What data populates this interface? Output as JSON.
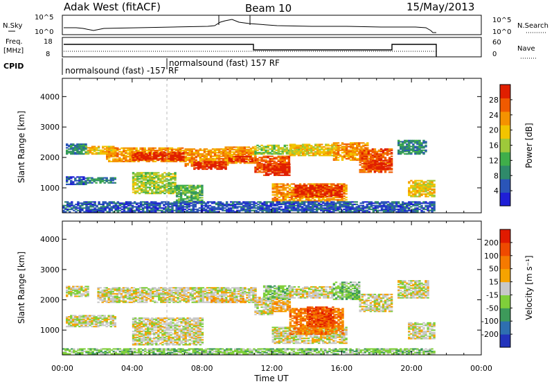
{
  "header": {
    "station": "Adak West (fitACF)",
    "beam": "Beam 10",
    "date": "15/May/2013"
  },
  "summary": {
    "nsky_label": "N.Sky",
    "nsky_ticks": [
      "10^5",
      "10^0"
    ],
    "nsearch_label": "N.Search",
    "nsearch_ticks": [
      "10^5",
      "10^0"
    ],
    "freq_label_line1": "Freq.",
    "freq_label_line2": "[MHz]",
    "freq_ticks": [
      "18",
      "8"
    ],
    "nave_label": "Nave",
    "nave_ticks": [
      "60",
      "0"
    ],
    "cpid_label": "CPID",
    "cpid_segments": [
      {
        "name": "normalsound (fast) -157 RF",
        "start_h": 0.0,
        "end_h": 6.0
      },
      {
        "name": "normalsound (fast) 157 RF",
        "start_h": 6.0,
        "end_h": 21.5
      }
    ]
  },
  "chart_data": [
    {
      "type": "heatmap",
      "panel": "power",
      "xlabel": "",
      "ylabel": "Slant Range [km]",
      "xlim": [
        0,
        24
      ],
      "ylim": [
        180,
        4600
      ],
      "yticks": [
        "1000",
        "2000",
        "3000",
        "4000"
      ],
      "colorbar": {
        "label": "Power [dB]",
        "ticks": [
          "4",
          "8",
          "12",
          "16",
          "20",
          "24",
          "28"
        ],
        "colors": [
          "#1f1fd6",
          "#2a55b8",
          "#2f8a6a",
          "#3fae4a",
          "#9ec93a",
          "#f2c400",
          "#f59200",
          "#f05a00",
          "#e01f00"
        ]
      },
      "bands": [
        {
          "t0": 0.2,
          "t1": 1.3,
          "r0": 2100,
          "r1": 2450,
          "level": 2
        },
        {
          "t0": 0.2,
          "t1": 1.4,
          "r0": 1100,
          "r1": 1350,
          "level": 1
        },
        {
          "t0": 1.4,
          "t1": 3.0,
          "r0": 1150,
          "r1": 1350,
          "level": 2
        },
        {
          "t0": 1.3,
          "t1": 3.0,
          "r0": 2100,
          "r1": 2350,
          "level": 5
        },
        {
          "t0": 2.5,
          "t1": 7.0,
          "r0": 1850,
          "r1": 2300,
          "level": 6
        },
        {
          "t0": 4.0,
          "t1": 7.0,
          "r0": 1900,
          "r1": 2150,
          "level": 8
        },
        {
          "t0": 7.0,
          "t1": 9.5,
          "r0": 1700,
          "r1": 2300,
          "level": 6
        },
        {
          "t0": 7.5,
          "t1": 9.3,
          "r0": 1600,
          "r1": 1850,
          "level": 8
        },
        {
          "t0": 9.3,
          "t1": 11.0,
          "r0": 1800,
          "r1": 2350,
          "level": 6
        },
        {
          "t0": 9.5,
          "t1": 10.9,
          "r0": 1850,
          "r1": 2050,
          "level": 8
        },
        {
          "t0": 4.0,
          "t1": 6.5,
          "r0": 800,
          "r1": 1500,
          "level": 4
        },
        {
          "t0": 6.5,
          "t1": 8.0,
          "r0": 500,
          "r1": 1100,
          "level": 3
        },
        {
          "t0": 11.0,
          "t1": 13.0,
          "r0": 1500,
          "r1": 2050,
          "level": 7
        },
        {
          "t0": 11.5,
          "t1": 13.0,
          "r0": 1400,
          "r1": 1800,
          "level": 8
        },
        {
          "t0": 11.0,
          "t1": 14.0,
          "r0": 2100,
          "r1": 2400,
          "level": 4
        },
        {
          "t0": 13.0,
          "t1": 15.8,
          "r0": 2050,
          "r1": 2450,
          "level": 5
        },
        {
          "t0": 12.0,
          "t1": 16.2,
          "r0": 550,
          "r1": 1150,
          "level": 6
        },
        {
          "t0": 13.3,
          "t1": 16.0,
          "r0": 700,
          "r1": 1100,
          "level": 8
        },
        {
          "t0": 15.5,
          "t1": 17.5,
          "r0": 1900,
          "r1": 2500,
          "level": 6
        },
        {
          "t0": 17.0,
          "t1": 18.9,
          "r0": 1500,
          "r1": 2300,
          "level": 7
        },
        {
          "t0": 17.5,
          "t1": 18.8,
          "r0": 1600,
          "r1": 1900,
          "level": 8
        },
        {
          "t0": 19.2,
          "t1": 20.8,
          "r0": 2100,
          "r1": 2550,
          "level": 2
        },
        {
          "t0": 19.8,
          "t1": 21.3,
          "r0": 700,
          "r1": 1250,
          "level": 5
        },
        {
          "t0": 0.0,
          "t1": 21.3,
          "r0": 200,
          "r1": 550,
          "level": 1
        }
      ]
    },
    {
      "type": "heatmap",
      "panel": "velocity",
      "xlabel": "Time UT",
      "ylabel": "Slant Range [km]",
      "xlim": [
        0,
        24
      ],
      "ylim": [
        180,
        4600
      ],
      "xticks": [
        "00:00",
        "04:00",
        "08:00",
        "12:00",
        "16:00",
        "20:00",
        "00:00"
      ],
      "yticks": [
        "1000",
        "2000",
        "3000",
        "4000"
      ],
      "colorbar": {
        "label": "Velocity [m s⁻¹]",
        "ticks": [
          "200",
          "100",
          "50",
          "15",
          "-15",
          "-50",
          "-100",
          "-200"
        ],
        "colors": [
          "#2233bb",
          "#2e6fb0",
          "#3d9a5a",
          "#7fcf3a",
          "#c8c8c8",
          "#f6a300",
          "#f57a00",
          "#ef4a00",
          "#e01a00"
        ]
      },
      "bands": [
        {
          "t0": 0.2,
          "t1": 1.5,
          "r0": 2100,
          "r1": 2450,
          "level": 4
        },
        {
          "t0": 2.0,
          "t1": 11.0,
          "r0": 1900,
          "r1": 2400,
          "level": 4
        },
        {
          "t0": 0.2,
          "t1": 3.0,
          "r0": 1100,
          "r1": 1500,
          "level": 4
        },
        {
          "t0": 4.0,
          "t1": 8.0,
          "r0": 500,
          "r1": 1400,
          "level": 4
        },
        {
          "t0": 8.5,
          "t1": 10.5,
          "r0": 1900,
          "r1": 2050,
          "level": 5
        },
        {
          "t0": 11.0,
          "t1": 12.0,
          "r0": 1500,
          "r1": 2100,
          "level": 4
        },
        {
          "t0": 12.0,
          "t1": 13.0,
          "r0": 1600,
          "r1": 2200,
          "level": 5
        },
        {
          "t0": 11.5,
          "t1": 13.0,
          "r0": 2000,
          "r1": 2450,
          "level": 3
        },
        {
          "t0": 13.0,
          "t1": 15.5,
          "r0": 2050,
          "r1": 2450,
          "level": 4
        },
        {
          "t0": 12.0,
          "t1": 16.2,
          "r0": 550,
          "r1": 1100,
          "level": 4
        },
        {
          "t0": 13.0,
          "t1": 16.0,
          "r0": 850,
          "r1": 1700,
          "level": 6
        },
        {
          "t0": 14.0,
          "t1": 15.5,
          "r0": 1100,
          "r1": 1750,
          "level": 7
        },
        {
          "t0": 15.5,
          "t1": 17.0,
          "r0": 2000,
          "r1": 2600,
          "level": 3
        },
        {
          "t0": 17.0,
          "t1": 18.9,
          "r0": 1600,
          "r1": 2200,
          "level": 4
        },
        {
          "t0": 19.2,
          "t1": 20.9,
          "r0": 2050,
          "r1": 2650,
          "level": 4
        },
        {
          "t0": 19.8,
          "t1": 21.3,
          "r0": 700,
          "r1": 1250,
          "level": 4
        },
        {
          "t0": 0.0,
          "t1": 21.3,
          "r0": 200,
          "r1": 400,
          "level": 3
        }
      ]
    }
  ]
}
